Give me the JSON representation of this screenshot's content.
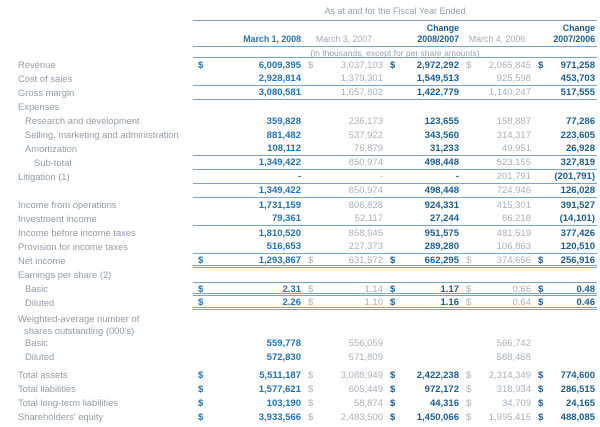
{
  "currency": "$",
  "header": {
    "caption": "As at and for the Fiscal Year Ended",
    "note": "(in thousands, except for per share amounts)",
    "columns": [
      {
        "label": "March 1, 2008"
      },
      {
        "label": "March 3, 2007"
      },
      {
        "label": "Change\n2008/2007"
      },
      {
        "label": "March 4, 2006"
      },
      {
        "label": "Change\n2007/2006"
      }
    ]
  },
  "rows": [
    {
      "label": "Revenue",
      "indent": 0,
      "dollar": true,
      "cells": [
        "6,009,395",
        "3,037,103",
        "2,972,292",
        "2,065,845",
        "971,258"
      ]
    },
    {
      "label": "Cost of sales",
      "indent": 0,
      "dollar": false,
      "cells": [
        "2,928,814",
        "1,379,301",
        "1,549,513",
        "925,598",
        "453,703"
      ],
      "rule_below": "single"
    },
    {
      "label": "Gross margin",
      "indent": 0,
      "dollar": false,
      "cells": [
        "3,080,581",
        "1,657,802",
        "1,422,779",
        "1,140,247",
        "517,555"
      ],
      "rule_below": "single"
    },
    {
      "label": "Expenses",
      "indent": 0,
      "dollar": false,
      "cells": [
        "",
        "",
        "",
        "",
        ""
      ]
    },
    {
      "label": "Research and development",
      "indent": 1,
      "dollar": false,
      "cells": [
        "359,828",
        "236,173",
        "123,655",
        "158,887",
        "77,286"
      ]
    },
    {
      "label": "Selling, marketing and administration",
      "indent": 1,
      "dollar": false,
      "cells": [
        "881,482",
        "537,922",
        "343,560",
        "314,317",
        "223,605"
      ]
    },
    {
      "label": "Amortization",
      "indent": 1,
      "dollar": false,
      "cells": [
        "108,112",
        "76,879",
        "31,233",
        "49,951",
        "26,928"
      ],
      "rule_below": "single"
    },
    {
      "label": "Sub-total",
      "indent": 2,
      "dollar": false,
      "cells": [
        "1,349,422",
        "850,974",
        "498,448",
        "523,155",
        "327,819"
      ],
      "rule_below": "single"
    },
    {
      "label": "Litigation (1)",
      "indent": 0,
      "dollar": false,
      "cells": [
        "-",
        "-",
        "-",
        "201,791",
        "(201,791)"
      ],
      "rule_below": "single"
    },
    {
      "label": "",
      "indent": 0,
      "dollar": false,
      "cells": [
        "1,349,422",
        "850,974",
        "498,448",
        "724,946",
        "126,028"
      ],
      "rule_below": "single"
    },
    {
      "label": "Income from operations",
      "indent": 0,
      "dollar": false,
      "cells": [
        "1,731,159",
        "806,828",
        "924,331",
        "415,301",
        "391,527"
      ]
    },
    {
      "label": "Investment income",
      "indent": 0,
      "dollar": false,
      "cells": [
        "79,361",
        "52,117",
        "27,244",
        "66,218",
        "(14,101)"
      ],
      "rule_below": "single"
    },
    {
      "label": "Income before income taxes",
      "indent": 0,
      "dollar": false,
      "cells": [
        "1,810,520",
        "858,945",
        "951,575",
        "481,519",
        "377,426"
      ]
    },
    {
      "label": "Provision for income taxes",
      "indent": 0,
      "dollar": false,
      "cells": [
        "516,653",
        "227,373",
        "289,280",
        "106,863",
        "120,510"
      ],
      "rule_below": "single"
    },
    {
      "label": "Net income",
      "indent": 0,
      "dollar": true,
      "cells": [
        "1,293,867",
        "631,572",
        "662,295",
        "374,656",
        "256,916"
      ],
      "rule_below": "double"
    },
    {
      "label": "Earnings per share (2)",
      "indent": 0,
      "dollar": false,
      "cells": [
        "",
        "",
        "",
        "",
        ""
      ]
    },
    {
      "label": "Basic",
      "indent": 1,
      "dollar": true,
      "cells": [
        "2.31",
        "1.14",
        "1.17",
        "0.66",
        "0.48"
      ],
      "rule_above": true,
      "rule_below": "double"
    },
    {
      "label": "Diluted",
      "indent": 1,
      "dollar": true,
      "cells": [
        "2.26",
        "1.10",
        "1.16",
        "0.64",
        "0.46"
      ],
      "rule_below": "double"
    },
    {
      "label": "Weighted-average number of",
      "sublabel": "shares outstanding (000's)",
      "tall": true,
      "gap_before": 2,
      "indent": 0,
      "dollar": false,
      "cells": [
        "",
        "",
        "",
        "",
        ""
      ]
    },
    {
      "label": "Basic",
      "indent": 1,
      "dollar": false,
      "cells": [
        "559,778",
        "556,059",
        "",
        "566,742",
        ""
      ]
    },
    {
      "label": "Diluted",
      "indent": 1,
      "dollar": false,
      "cells": [
        "572,830",
        "571,809",
        "",
        "588,468",
        ""
      ]
    },
    {
      "label": "Total assets",
      "indent": 0,
      "dollar": true,
      "gap_before": 4,
      "cells": [
        "5,511,187",
        "3,088,949",
        "2,422,238",
        "2,314,349",
        "774,600"
      ]
    },
    {
      "label": "Total liabilities",
      "indent": 0,
      "dollar": true,
      "cells": [
        "1,577,621",
        "605,449",
        "972,172",
        "318,934",
        "286,515"
      ]
    },
    {
      "label": "Total long-term liabilities",
      "indent": 0,
      "dollar": true,
      "cells": [
        "103,190",
        "58,874",
        "44,316",
        "34,709",
        "24,165"
      ]
    },
    {
      "label": "Shareholders' equity",
      "indent": 0,
      "dollar": true,
      "cells": [
        "3,933,566",
        "2,483,500",
        "1,450,066",
        "1,995,415",
        "488,085"
      ]
    }
  ]
}
